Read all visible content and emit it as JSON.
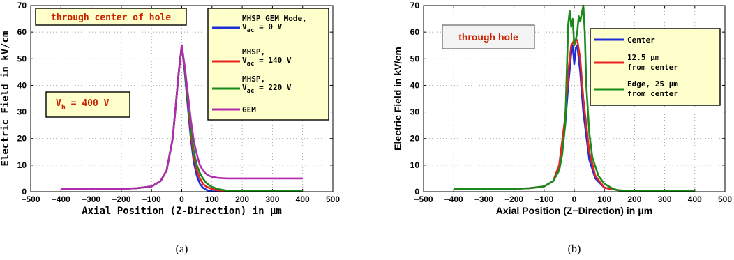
{
  "colors": {
    "blue": "#1f2fd6",
    "red": "#e8221f",
    "green": "#1a8a1a",
    "purple": "#b02cb0",
    "note_bg": "#ffffcc",
    "note_text": "#cc2200"
  },
  "chart_data": [
    {
      "type": "line",
      "caption": "(a)",
      "xlabel": "Axial Position (Z-Direction) in μm",
      "ylabel": "Electric Field in kV/cm",
      "xlim": [
        -500,
        500
      ],
      "ylim": [
        0,
        70
      ],
      "xticks": [
        "-500",
        "-400",
        "-300",
        "-200",
        "-100",
        "0",
        "100",
        "200",
        "300",
        "400",
        "500"
      ],
      "yticks": [
        "0",
        "10",
        "20",
        "30",
        "40",
        "50",
        "60",
        "70"
      ],
      "grid": true,
      "legend_placement": "top-right",
      "annotations": [
        {
          "text": "through center of hole",
          "color": "#cc2200"
        },
        {
          "text": "V_h = 400 V",
          "main": "V",
          "sub": "h",
          "rest": " = 400 V"
        }
      ],
      "series": [
        {
          "name": "MHSP GEM Mode, V_ac = 0 V",
          "legend_lines": [
            "MHSP GEM Mode,",
            "V",
            "ac",
            " = 0 V"
          ],
          "color": "#1f2fd6",
          "x": [
            -400,
            -300,
            -200,
            -150,
            -100,
            -70,
            -50,
            -30,
            -20,
            -10,
            0,
            10,
            20,
            30,
            40,
            50,
            60,
            70,
            80,
            90,
            100,
            120,
            150,
            200,
            300,
            400
          ],
          "y": [
            1.0,
            1.0,
            1.1,
            1.3,
            2.0,
            4.0,
            8.0,
            20,
            32,
            45,
            55,
            45,
            32,
            20,
            11,
            6,
            3,
            1.5,
            0.8,
            0.3,
            0.1,
            0.1,
            0.2,
            0.2,
            0.2,
            0.2
          ]
        },
        {
          "name": "MHSP, V_ac = 140 V",
          "legend_lines": [
            "MHSP,",
            "V",
            "ac",
            " = 140 V"
          ],
          "color": "#e8221f",
          "x": [
            -400,
            -300,
            -200,
            -150,
            -100,
            -70,
            -50,
            -30,
            -20,
            -10,
            0,
            10,
            20,
            30,
            40,
            50,
            60,
            70,
            80,
            90,
            100,
            120,
            150,
            200,
            300,
            400
          ],
          "y": [
            1.0,
            1.0,
            1.1,
            1.3,
            2.0,
            4.0,
            8.0,
            20,
            32,
            45,
            55,
            46,
            34,
            22,
            13,
            8,
            5,
            3,
            2,
            1.5,
            1,
            0.5,
            0.3,
            0.2,
            0.2,
            0.2
          ]
        },
        {
          "name": "MHSP, V_ac = 220 V",
          "legend_lines": [
            "MHSP,",
            "V",
            "ac",
            " = 220 V"
          ],
          "color": "#1a8a1a",
          "x": [
            -400,
            -300,
            -200,
            -150,
            -100,
            -70,
            -50,
            -30,
            -20,
            -10,
            0,
            10,
            20,
            30,
            40,
            50,
            60,
            70,
            80,
            90,
            100,
            120,
            150,
            200,
            300,
            400
          ],
          "y": [
            1.0,
            1.0,
            1.1,
            1.3,
            2.0,
            4.0,
            8.0,
            20,
            32,
            45,
            55,
            46,
            35,
            24,
            15,
            10,
            7,
            5,
            3.5,
            2.5,
            1.8,
            1.0,
            0.4,
            0.2,
            0.2,
            0.2
          ]
        },
        {
          "name": "GEM",
          "legend_lines": [
            "GEM"
          ],
          "color": "#b02cb0",
          "x": [
            -400,
            -300,
            -200,
            -150,
            -100,
            -70,
            -50,
            -30,
            -20,
            -10,
            0,
            10,
            20,
            30,
            40,
            50,
            60,
            70,
            80,
            90,
            100,
            120,
            150,
            200,
            300,
            400
          ],
          "y": [
            1.0,
            1.0,
            1.1,
            1.3,
            2.0,
            4.0,
            8.0,
            20,
            32,
            45,
            55,
            47,
            37,
            27,
            19,
            14,
            10,
            8,
            6.8,
            6.0,
            5.6,
            5.2,
            5.0,
            5.0,
            5.0,
            5.0
          ]
        }
      ]
    },
    {
      "type": "line",
      "caption": "(b)",
      "xlabel": "Axial Position (Z−Direction) in μm",
      "ylabel": "Electric Field in kV/cm",
      "xlim": [
        -500,
        500
      ],
      "ylim": [
        0,
        70
      ],
      "xticks": [
        "-500",
        "-400",
        "-300",
        "-200",
        "-100",
        "0",
        "100",
        "200",
        "300",
        "400",
        "500"
      ],
      "yticks": [
        "0",
        "10",
        "20",
        "30",
        "40",
        "50",
        "60",
        "70"
      ],
      "grid": true,
      "legend_placement": "top-right",
      "annotations": [
        {
          "text": "through hole",
          "color": "#cc2200"
        }
      ],
      "series": [
        {
          "name": "Center",
          "legend_lines": [
            "Center"
          ],
          "color": "#1f2fd6",
          "x": [
            -400,
            -300,
            -200,
            -150,
            -100,
            -70,
            -50,
            -30,
            -20,
            -10,
            -5,
            0,
            5,
            10,
            20,
            30,
            50,
            70,
            100,
            150,
            200,
            300,
            400
          ],
          "y": [
            1.0,
            1.0,
            1.1,
            1.3,
            2.0,
            4.0,
            9,
            25,
            40,
            52,
            55,
            48,
            54,
            55,
            45,
            30,
            12,
            5,
            1.5,
            0.5,
            0.3,
            0.3,
            0.3
          ]
        },
        {
          "name": "12.5 μm from center",
          "legend_lines": [
            "12.5 μm",
            "from center"
          ],
          "color": "#e8221f",
          "x": [
            -400,
            -300,
            -200,
            -150,
            -100,
            -70,
            -50,
            -30,
            -20,
            -10,
            0,
            10,
            20,
            30,
            50,
            70,
            100,
            150,
            200,
            300,
            400
          ],
          "y": [
            1.0,
            1.0,
            1.1,
            1.3,
            2.0,
            4.0,
            10,
            28,
            45,
            55,
            57,
            57,
            50,
            35,
            15,
            6,
            1.5,
            0.5,
            0.3,
            0.3,
            0.3
          ]
        },
        {
          "name": "Edge, 25 μm from center",
          "legend_lines": [
            "Edge, 25 μm",
            " from center"
          ],
          "color": "#1a8a1a",
          "x": [
            -400,
            -300,
            -200,
            -150,
            -100,
            -70,
            -50,
            -40,
            -30,
            -20,
            -15,
            -10,
            -5,
            0,
            5,
            10,
            15,
            20,
            25,
            30,
            35,
            40,
            50,
            60,
            80,
            100,
            130,
            150,
            200,
            300,
            400
          ],
          "y": [
            1.0,
            1.0,
            1.1,
            1.3,
            2.0,
            4.0,
            8,
            14,
            25,
            63,
            68,
            62,
            65,
            55,
            57,
            60,
            66,
            64,
            67,
            70,
            60,
            40,
            22,
            13,
            6,
            3,
            1,
            0.5,
            0.3,
            0.3,
            0.3
          ]
        }
      ]
    }
  ]
}
